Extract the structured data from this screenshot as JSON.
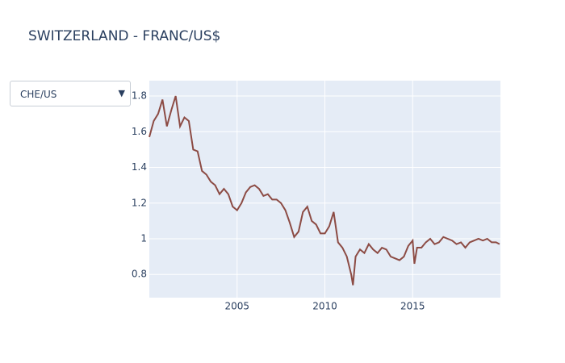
{
  "dropdown": {
    "label": "CHE/US"
  },
  "chart_data": {
    "type": "line",
    "title": "SWITZERLAND - FRANC/US$",
    "x": [
      2000.0,
      2000.25,
      2000.5,
      2000.75,
      2001.0,
      2001.25,
      2001.5,
      2001.75,
      2002.0,
      2002.25,
      2002.5,
      2002.75,
      2003.0,
      2003.25,
      2003.5,
      2003.75,
      2004.0,
      2004.25,
      2004.5,
      2004.75,
      2005.0,
      2005.25,
      2005.5,
      2005.75,
      2006.0,
      2006.25,
      2006.5,
      2006.75,
      2007.0,
      2007.25,
      2007.5,
      2007.75,
      2008.0,
      2008.25,
      2008.5,
      2008.75,
      2009.0,
      2009.25,
      2009.5,
      2009.75,
      2010.0,
      2010.25,
      2010.5,
      2010.75,
      2011.0,
      2011.25,
      2011.5,
      2011.6,
      2011.75,
      2012.0,
      2012.25,
      2012.5,
      2012.75,
      2013.0,
      2013.25,
      2013.5,
      2013.75,
      2014.0,
      2014.25,
      2014.5,
      2014.75,
      2015.0,
      2015.1,
      2015.25,
      2015.5,
      2015.75,
      2016.0,
      2016.25,
      2016.5,
      2016.75,
      2017.0,
      2017.25,
      2017.5,
      2017.75,
      2018.0,
      2018.25,
      2018.5,
      2018.75,
      2019.0,
      2019.25,
      2019.5,
      2019.75,
      2019.95
    ],
    "values": [
      1.57,
      1.66,
      1.7,
      1.78,
      1.63,
      1.72,
      1.8,
      1.63,
      1.68,
      1.66,
      1.5,
      1.49,
      1.38,
      1.36,
      1.32,
      1.3,
      1.25,
      1.28,
      1.25,
      1.18,
      1.16,
      1.2,
      1.26,
      1.29,
      1.3,
      1.28,
      1.24,
      1.25,
      1.22,
      1.22,
      1.2,
      1.16,
      1.09,
      1.01,
      1.04,
      1.15,
      1.18,
      1.1,
      1.08,
      1.03,
      1.03,
      1.07,
      1.15,
      0.98,
      0.95,
      0.9,
      0.8,
      0.74,
      0.9,
      0.94,
      0.92,
      0.97,
      0.94,
      0.92,
      0.95,
      0.94,
      0.9,
      0.89,
      0.88,
      0.9,
      0.96,
      0.99,
      0.86,
      0.95,
      0.95,
      0.98,
      1.0,
      0.97,
      0.98,
      1.01,
      1.0,
      0.99,
      0.97,
      0.98,
      0.95,
      0.98,
      0.99,
      1.0,
      0.99,
      1.0,
      0.98,
      0.98,
      0.97
    ],
    "color": "#8c4b44",
    "xlim": [
      2000,
      2020
    ],
    "xticks": [
      2005,
      2010,
      2015
    ],
    "ylim": [
      0.67,
      1.886
    ],
    "yticks": [
      0.8,
      1,
      1.2,
      1.4,
      1.6,
      1.8
    ],
    "grid": true
  }
}
